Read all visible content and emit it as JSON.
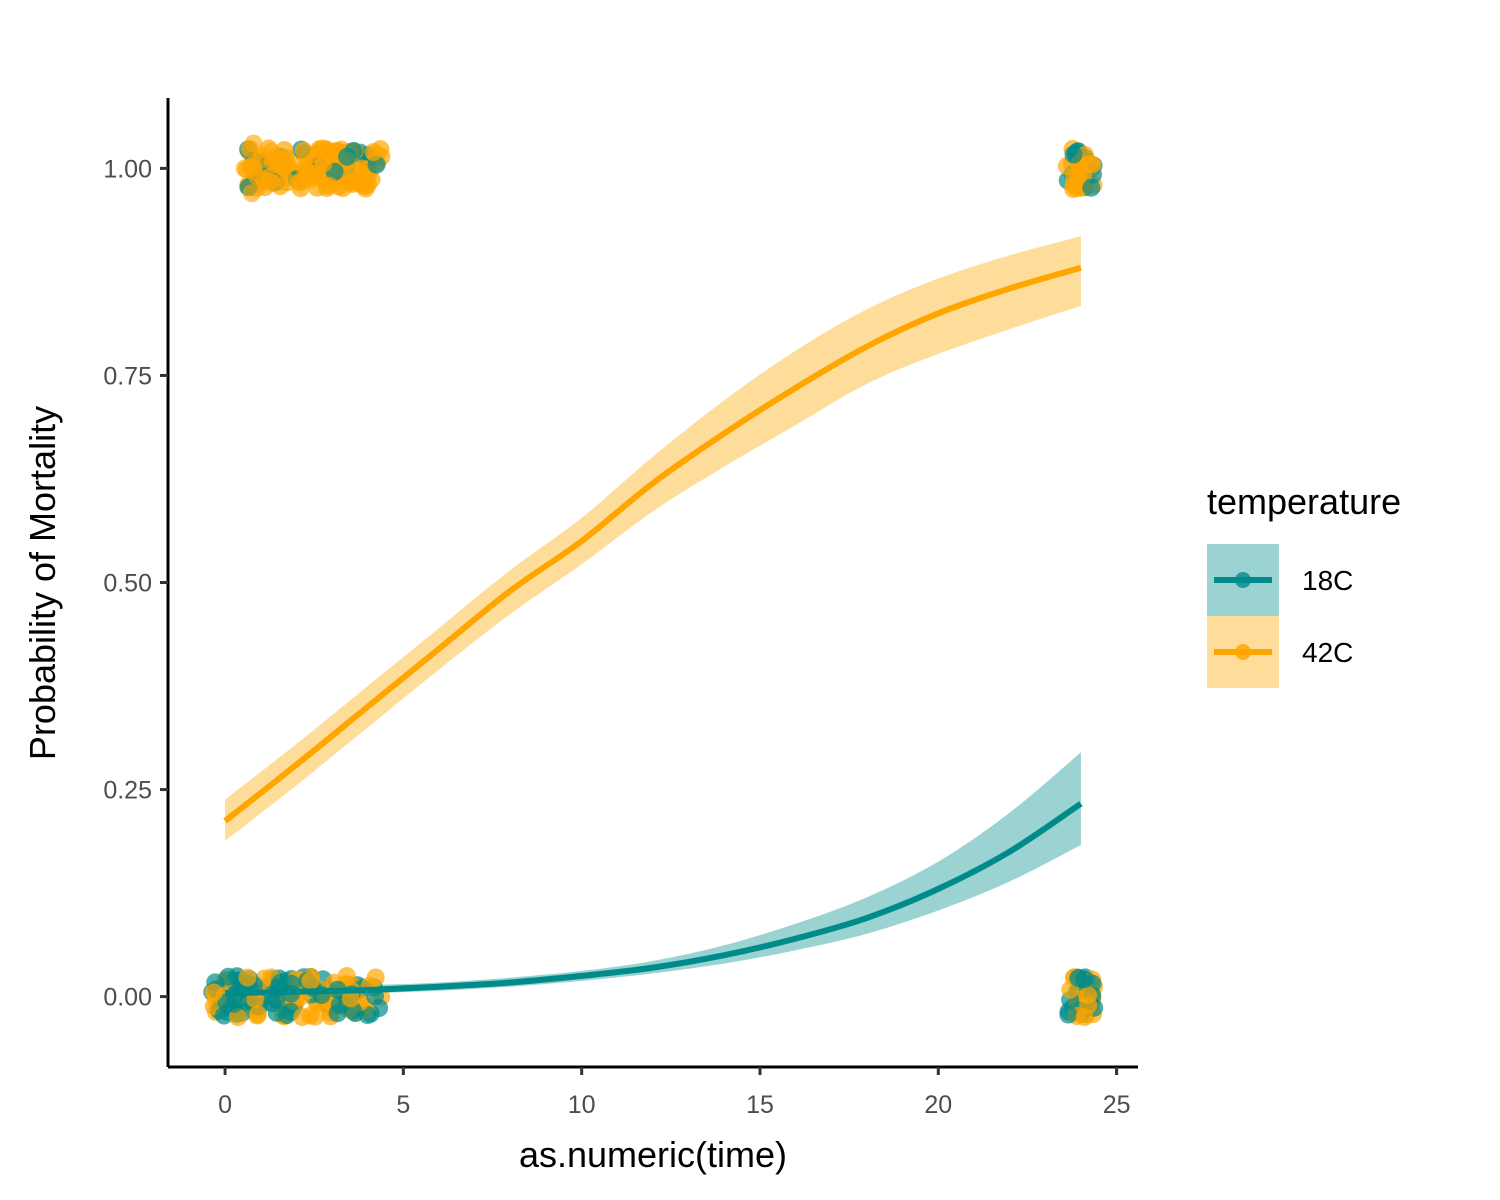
{
  "chart_data": {
    "type": "line",
    "title": "",
    "xlabel": "as.numeric(time)",
    "ylabel": "Probability of Mortality",
    "xlim": [
      -1.6,
      25.6
    ],
    "ylim": [
      -0.085,
      1.085
    ],
    "x_ticks": [
      0,
      5,
      10,
      15,
      20,
      25
    ],
    "x_tick_labels": [
      "0",
      "5",
      "10",
      "15",
      "20",
      "25"
    ],
    "y_ticks": [
      0,
      0.25,
      0.5,
      0.75,
      1
    ],
    "y_tick_labels": [
      "0.00",
      "0.25",
      "0.50",
      "0.75",
      "1.00"
    ],
    "grid": false,
    "legend": {
      "title": "temperature",
      "position": "right"
    },
    "x": [
      0,
      2,
      4,
      6,
      8,
      10,
      12,
      14,
      16,
      18,
      20,
      22,
      24
    ],
    "series": [
      {
        "name": "18C",
        "color": "#008b8b",
        "band_color": "#9bd2d2",
        "fit": [
          0.004,
          0.006,
          0.008,
          0.012,
          0.017,
          0.025,
          0.035,
          0.05,
          0.07,
          0.095,
          0.13,
          0.175,
          0.233
        ],
        "lower": [
          0.001,
          0.002,
          0.004,
          0.007,
          0.012,
          0.019,
          0.028,
          0.04,
          0.056,
          0.076,
          0.104,
          0.139,
          0.183
        ],
        "upper": [
          0.012,
          0.013,
          0.014,
          0.017,
          0.023,
          0.031,
          0.043,
          0.062,
          0.088,
          0.12,
          0.163,
          0.222,
          0.295
        ],
        "points_y": [
          0,
          1
        ]
      },
      {
        "name": "42C",
        "color": "#ffa500",
        "band_color": "#fedd9b",
        "fit": [
          0.212,
          0.28,
          0.35,
          0.42,
          0.49,
          0.55,
          0.62,
          0.68,
          0.735,
          0.785,
          0.825,
          0.855,
          0.88
        ],
        "lower": [
          0.188,
          0.255,
          0.325,
          0.395,
          0.462,
          0.522,
          0.586,
          0.64,
          0.69,
          0.74,
          0.776,
          0.806,
          0.834
        ],
        "upper": [
          0.238,
          0.305,
          0.375,
          0.445,
          0.515,
          0.578,
          0.652,
          0.72,
          0.78,
          0.83,
          0.867,
          0.895,
          0.918
        ],
        "points_y": [
          0,
          1
        ]
      }
    ]
  }
}
